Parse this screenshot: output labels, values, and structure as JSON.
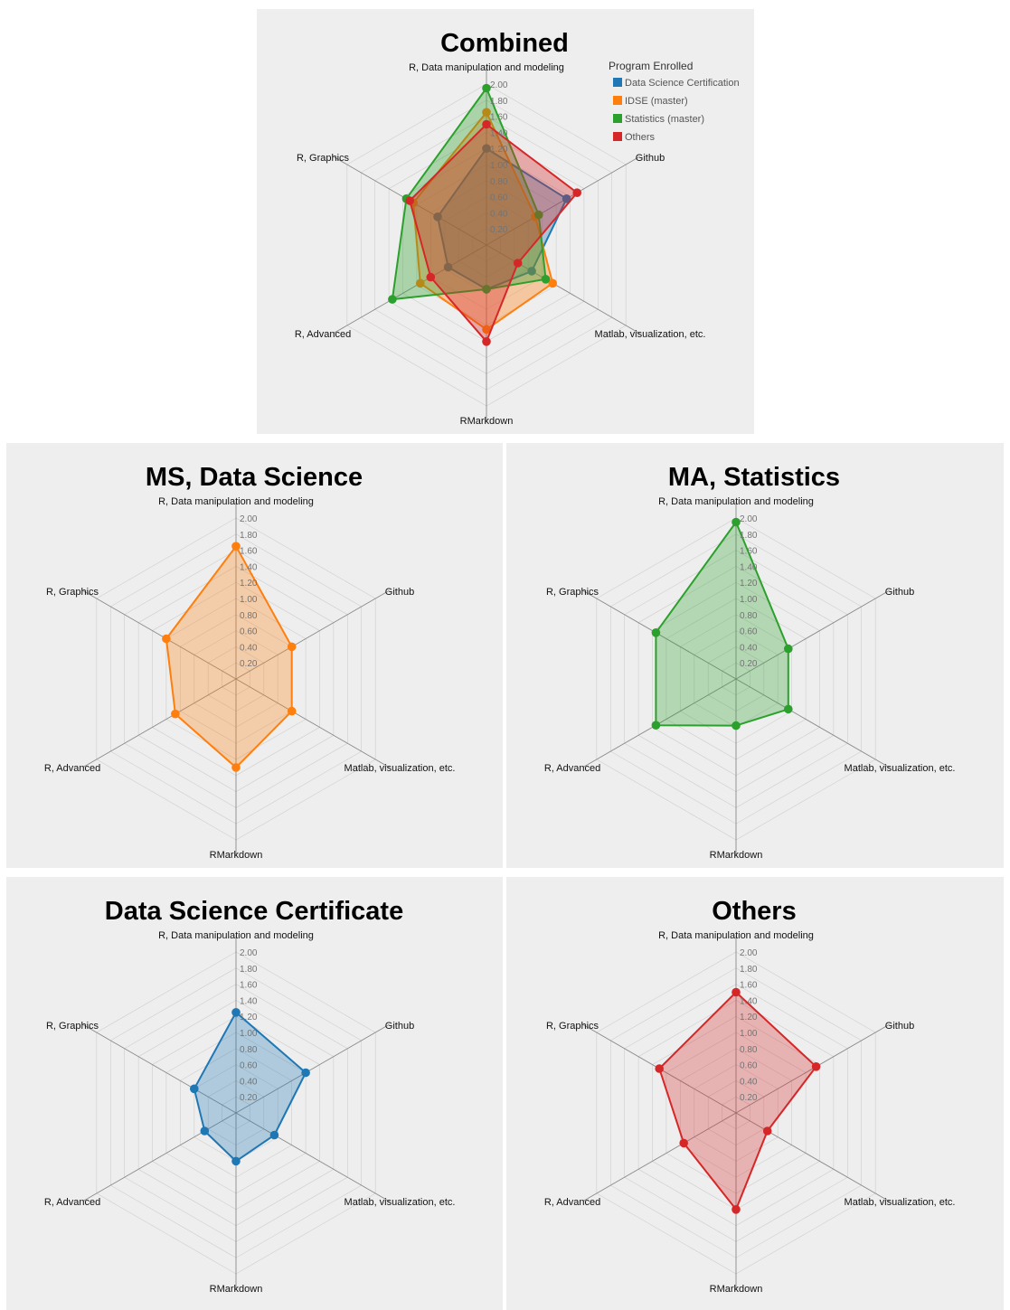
{
  "legend": {
    "title": "Program Enrolled",
    "items": [
      {
        "label": "Data Science Certification",
        "color": "#1f77b4"
      },
      {
        "label": "IDSE (master)",
        "color": "#ff7f0e"
      },
      {
        "label": "Statistics (master)",
        "color": "#2ca02c"
      },
      {
        "label": "Others",
        "color": "#d62728"
      }
    ]
  },
  "chart_data": [
    {
      "type": "radar",
      "title": "Combined",
      "axes": [
        "R, Data manipulation and modeling",
        "Github",
        "Matlab, visualization, etc.",
        "RMarkdown",
        "R, Advanced",
        "R, Graphics"
      ],
      "ticks": [
        "0.20",
        "0.40",
        "0.60",
        "0.80",
        "1.00",
        "1.20",
        "1.40",
        "1.60",
        "1.80",
        "2.00"
      ],
      "rmax": 2.0,
      "grid": true,
      "legend": "top-right",
      "series": [
        {
          "name": "Data Science Certification",
          "color": "#1f77b4",
          "values": [
            1.2,
            1.15,
            0.65,
            0.55,
            0.55,
            0.7
          ]
        },
        {
          "name": "IDSE (master)",
          "color": "#ff7f0e",
          "values": [
            1.65,
            0.7,
            0.95,
            1.05,
            0.95,
            1.05
          ]
        },
        {
          "name": "Statistics (master)",
          "color": "#2ca02c",
          "values": [
            1.95,
            0.75,
            0.85,
            0.55,
            1.35,
            1.15
          ]
        },
        {
          "name": "Others",
          "color": "#d62728",
          "values": [
            1.5,
            1.3,
            0.45,
            1.2,
            0.8,
            1.1
          ]
        }
      ]
    },
    {
      "type": "radar",
      "title": "MS, Data Science",
      "axes": [
        "R, Data manipulation and modeling",
        "Github",
        "Matlab, visualization, etc.",
        "RMarkdown",
        "R, Advanced",
        "R, Graphics"
      ],
      "ticks": [
        "0.20",
        "0.40",
        "0.60",
        "0.80",
        "1.00",
        "1.20",
        "1.40",
        "1.60",
        "1.80",
        "2.00"
      ],
      "rmax": 2.0,
      "grid": true,
      "series": [
        {
          "name": "IDSE (master)",
          "color": "#ff7f0e",
          "values": [
            1.65,
            0.8,
            0.8,
            1.1,
            0.87,
            1.0
          ]
        }
      ]
    },
    {
      "type": "radar",
      "title": "MA, Statistics",
      "axes": [
        "R, Data manipulation and modeling",
        "Github",
        "Matlab, visualization, etc.",
        "RMarkdown",
        "R, Advanced",
        "R, Graphics"
      ],
      "ticks": [
        "0.20",
        "0.40",
        "0.60",
        "0.80",
        "1.00",
        "1.20",
        "1.40",
        "1.60",
        "1.80",
        "2.00"
      ],
      "rmax": 2.0,
      "grid": true,
      "series": [
        {
          "name": "Statistics (master)",
          "color": "#2ca02c",
          "values": [
            1.95,
            0.75,
            0.75,
            0.58,
            1.15,
            1.15
          ]
        }
      ]
    },
    {
      "type": "radar",
      "title": "Data Science Certificate",
      "axes": [
        "R, Data manipulation and modeling",
        "Github",
        "Matlab, visualization, etc.",
        "RMarkdown",
        "R, Advanced",
        "R, Graphics"
      ],
      "ticks": [
        "0.20",
        "0.40",
        "0.60",
        "0.80",
        "1.00",
        "1.20",
        "1.40",
        "1.60",
        "1.80",
        "2.00"
      ],
      "rmax": 2.0,
      "grid": true,
      "series": [
        {
          "name": "Data Science Certification",
          "color": "#1f77b4",
          "values": [
            1.25,
            1.0,
            0.55,
            0.6,
            0.45,
            0.6
          ]
        }
      ]
    },
    {
      "type": "radar",
      "title": "Others",
      "axes": [
        "R, Data manipulation and modeling",
        "Github",
        "Matlab, visualization, etc.",
        "RMarkdown",
        "R, Advanced",
        "R, Graphics"
      ],
      "ticks": [
        "0.20",
        "0.40",
        "0.60",
        "0.80",
        "1.00",
        "1.20",
        "1.40",
        "1.60",
        "1.80",
        "2.00"
      ],
      "rmax": 2.0,
      "grid": true,
      "series": [
        {
          "name": "Others",
          "color": "#d62728",
          "values": [
            1.5,
            1.15,
            0.45,
            1.2,
            0.75,
            1.1
          ]
        }
      ]
    }
  ]
}
